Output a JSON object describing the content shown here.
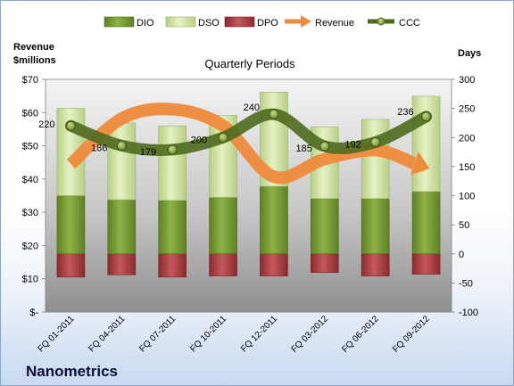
{
  "chart_data": {
    "type": "bar",
    "title": "Quarterly Periods",
    "company": "Nanometrics",
    "left_axis": {
      "label_line1": "Revenue",
      "label_line2": "$millions",
      "ylim": [
        0,
        70
      ],
      "ticks": [
        0,
        10,
        20,
        30,
        40,
        50,
        60,
        70
      ],
      "tick_labels": [
        "$-",
        "$10",
        "$20",
        "$30",
        "$40",
        "$50",
        "$60",
        "$70"
      ]
    },
    "right_axis": {
      "label": "Days",
      "ylim": [
        -100,
        300
      ],
      "ticks": [
        -100,
        -50,
        0,
        50,
        100,
        150,
        200,
        250,
        300
      ],
      "tick_labels": [
        "-100",
        "-50",
        "0",
        "50",
        "100",
        "150",
        "200",
        "250",
        "300"
      ]
    },
    "categories": [
      "FQ 01-2011",
      "FQ 04-2011",
      "FQ 07-2011",
      "FQ 10-2011",
      "FQ 12-2011",
      "FQ 03-2012",
      "FQ 06-2012",
      "FQ 09-2012"
    ],
    "series": [
      {
        "name": "DIO",
        "axis": "right",
        "kind": "stacked-bar",
        "values": [
          100,
          93,
          92,
          97,
          116,
          95,
          95,
          107
        ],
        "color": "#7ea13a"
      },
      {
        "name": "DSO",
        "axis": "right",
        "kind": "stacked-bar",
        "values": [
          150,
          132,
          128,
          141,
          162,
          123,
          136,
          164
        ],
        "color": "#d4e6a5"
      },
      {
        "name": "DPO",
        "axis": "right",
        "kind": "negative-bar",
        "values": [
          -40,
          -36,
          -40,
          -38,
          -38,
          -32,
          -38,
          -35
        ],
        "color": "#b8454a"
      },
      {
        "name": "Revenue",
        "axis": "left",
        "kind": "arrow-line",
        "values": [
          44.5,
          58.2,
          61.0,
          56.0,
          40.7,
          46.0,
          48.7,
          43.5
        ],
        "color": "#ef8a3c"
      },
      {
        "name": "CCC",
        "axis": "right",
        "kind": "line",
        "values": [
          220,
          186,
          179,
          200,
          240,
          185,
          192,
          236
        ],
        "color": "#4e6a1e"
      }
    ],
    "data_labels": [
      "220",
      "186",
      "179",
      "200",
      "240",
      "185",
      "192",
      "236"
    ],
    "legend": {
      "position": "top",
      "items": [
        "DIO",
        "DSO",
        "DPO",
        "Revenue",
        "CCC"
      ]
    },
    "grid": false
  }
}
